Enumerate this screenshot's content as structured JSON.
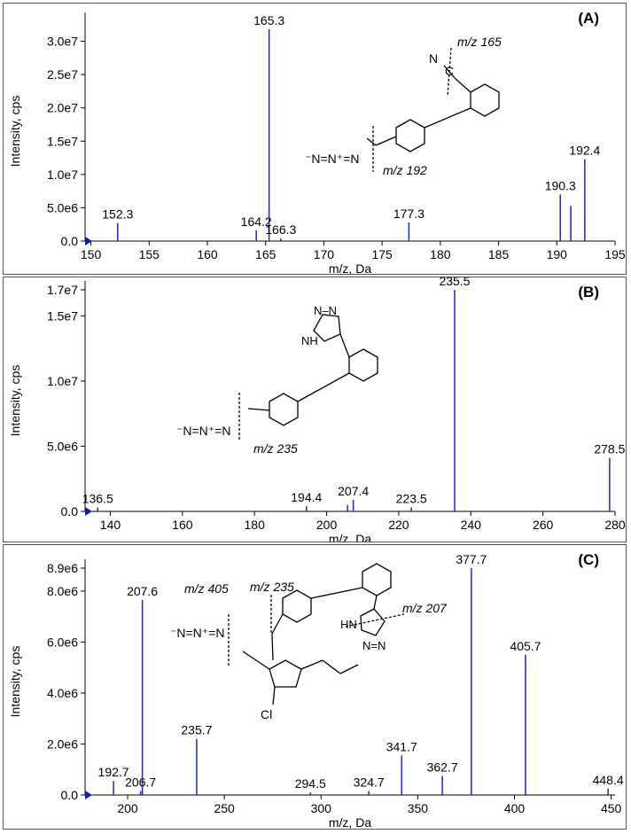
{
  "chart_data": [
    {
      "type": "bar",
      "panel_label": "(A)",
      "xlabel": "m/z, Da",
      "ylabel": "Intensity, cps",
      "xlim": [
        149.5,
        195
      ],
      "ylim": [
        0,
        33000000.0
      ],
      "x_ticks": [
        150,
        155,
        160,
        165,
        170,
        175,
        180,
        185,
        190,
        195
      ],
      "y_ticks": [
        {
          "v": 0,
          "label": "0.0"
        },
        {
          "v": 5000000.0,
          "label": "5.0e6"
        },
        {
          "v": 10000000.0,
          "label": "1.0e7"
        },
        {
          "v": 15000000.0,
          "label": "1.5e7"
        },
        {
          "v": 20000000.0,
          "label": "2.0e7"
        },
        {
          "v": 25000000.0,
          "label": "2.5e7"
        },
        {
          "v": 30000000.0,
          "label": "3.0e7"
        }
      ],
      "peaks": [
        {
          "x": 152.3,
          "y": 2700000.0,
          "label": "152.3"
        },
        {
          "x": 164.2,
          "y": 1600000.0,
          "label": "164.2"
        },
        {
          "x": 165.3,
          "y": 31800000.0,
          "label": "165.3"
        },
        {
          "x": 166.3,
          "y": 400000.0,
          "label": "166.3"
        },
        {
          "x": 177.3,
          "y": 2800000.0,
          "label": "177.3"
        },
        {
          "x": 190.3,
          "y": 7000000.0,
          "label": "190.3"
        },
        {
          "x": 191.2,
          "y": 5300000.0,
          "label": ""
        },
        {
          "x": 192.4,
          "y": 12300000.0,
          "label": "192.4"
        }
      ],
      "annotations": [
        "m/z 165",
        "m/z 192"
      ]
    },
    {
      "type": "bar",
      "panel_label": "(B)",
      "xlabel": "m/z, Da",
      "ylabel": "Intensity, cps",
      "xlim": [
        133,
        280
      ],
      "ylim": [
        0,
        17000000.0
      ],
      "x_ticks": [
        140,
        160,
        180,
        200,
        220,
        240,
        260,
        280
      ],
      "y_ticks": [
        {
          "v": 0,
          "label": "0.0"
        },
        {
          "v": 5000000.0,
          "label": "5.0e6"
        },
        {
          "v": 10000000.0,
          "label": "1.0e7"
        },
        {
          "v": 15000000.0,
          "label": "1.5e7"
        },
        {
          "v": 17000000.0,
          "label": "1.7e7"
        }
      ],
      "peaks": [
        {
          "x": 136.5,
          "y": 300000.0,
          "label": "136.5"
        },
        {
          "x": 194.4,
          "y": 400000.0,
          "label": "194.4"
        },
        {
          "x": 205.8,
          "y": 500000.0,
          "label": ""
        },
        {
          "x": 207.4,
          "y": 900000.0,
          "label": "207.4"
        },
        {
          "x": 223.5,
          "y": 300000.0,
          "label": "223.5"
        },
        {
          "x": 235.5,
          "y": 17000000.0,
          "label": "235.5"
        },
        {
          "x": 278.5,
          "y": 4100000.0,
          "label": "278.5"
        }
      ],
      "annotations": [
        "m/z 235"
      ]
    },
    {
      "type": "bar",
      "panel_label": "(C)",
      "xlabel": "m/z, Da",
      "ylabel": "Intensity, cps",
      "xlim": [
        178,
        452
      ],
      "ylim": [
        0,
        8900000.0
      ],
      "x_ticks": [
        200,
        250,
        300,
        350,
        400,
        450
      ],
      "y_ticks": [
        {
          "v": 0,
          "label": "0.0"
        },
        {
          "v": 2000000.0,
          "label": "2.0e6"
        },
        {
          "v": 4000000.0,
          "label": "4.0e6"
        },
        {
          "v": 6000000.0,
          "label": "6.0e6"
        },
        {
          "v": 8000000.0,
          "label": "8.0e6"
        },
        {
          "v": 8900000.0,
          "label": "8.9e6"
        }
      ],
      "peaks": [
        {
          "x": 192.7,
          "y": 550000.0,
          "label": "192.7"
        },
        {
          "x": 206.7,
          "y": 150000.0,
          "label": "206.7"
        },
        {
          "x": 207.6,
          "y": 7650000.0,
          "label": "207.6"
        },
        {
          "x": 235.7,
          "y": 2200000.0,
          "label": "235.7"
        },
        {
          "x": 294.5,
          "y": 100000.0,
          "label": "294.5"
        },
        {
          "x": 324.7,
          "y": 150000.0,
          "label": "324.7"
        },
        {
          "x": 341.7,
          "y": 1550000.0,
          "label": "341.7"
        },
        {
          "x": 362.7,
          "y": 750000.0,
          "label": "362.7"
        },
        {
          "x": 377.7,
          "y": 8900000.0,
          "label": "377.7"
        },
        {
          "x": 405.7,
          "y": 5500000.0,
          "label": "405.7"
        },
        {
          "x": 448.4,
          "y": 250000.0,
          "label": "448.4"
        }
      ],
      "annotations": [
        "m/z 405",
        "m/z 235",
        "m/z 207"
      ]
    }
  ]
}
